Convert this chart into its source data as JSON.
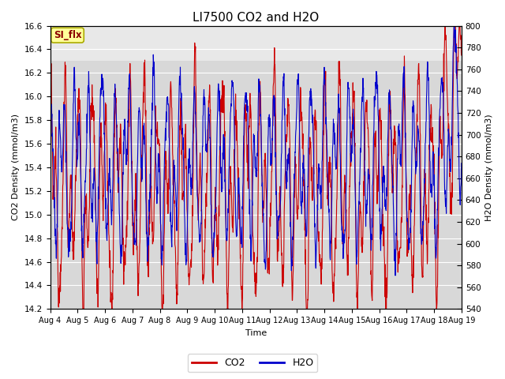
{
  "title": "LI7500 CO2 and H2O",
  "xlabel": "Time",
  "ylabel_left": "CO2 Density (mmol/m3)",
  "ylabel_right": "H2O Density (mmol/m3)",
  "ylim_left": [
    14.2,
    16.6
  ],
  "ylim_right": [
    540,
    800
  ],
  "yticks_left": [
    14.2,
    14.4,
    14.6,
    14.8,
    15.0,
    15.2,
    15.4,
    15.6,
    15.8,
    16.0,
    16.2,
    16.4,
    16.6
  ],
  "yticks_right": [
    540,
    560,
    580,
    600,
    620,
    640,
    660,
    680,
    700,
    720,
    740,
    760,
    780,
    800
  ],
  "xtick_labels": [
    "Aug 4",
    "Aug 5",
    "Aug 6",
    "Aug 7",
    "Aug 8",
    "Aug 9",
    "Aug 10",
    "Aug 11",
    "Aug 12",
    "Aug 13",
    "Aug 14",
    "Aug 15",
    "Aug 16",
    "Aug 17",
    "Aug 18",
    "Aug 19"
  ],
  "n_points": 1600,
  "co2_color": "#cc0000",
  "h2o_color": "#0000cc",
  "linewidth": 0.8,
  "legend_co2": "CO2",
  "legend_h2o": "H2O",
  "bg_color": "#d8d8d8",
  "top_band_color": "#e8e8e8",
  "annotation_text": "SI_flx",
  "annotation_color": "#8b0000",
  "annotation_bg": "#ffff99",
  "grid_color": "white",
  "title_fontsize": 11
}
